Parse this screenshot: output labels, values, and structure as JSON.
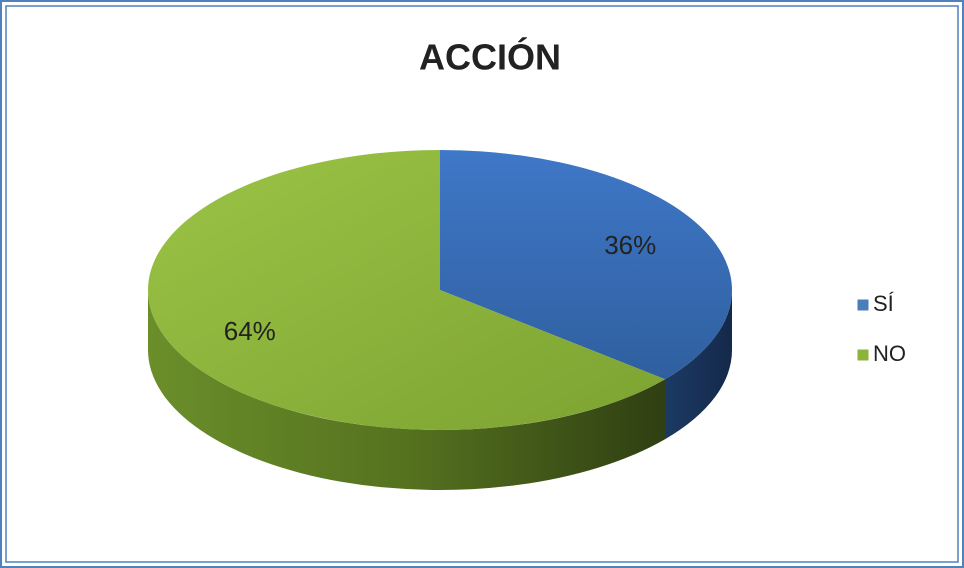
{
  "chart_data": {
    "type": "pie",
    "title": "ACCIÓN",
    "categories": [
      "SÍ",
      "NO"
    ],
    "values": [
      36,
      64
    ],
    "value_labels": [
      "36%",
      "64%"
    ],
    "colors": [
      "#4a7ebb",
      "#8cb33b"
    ],
    "legend": "right"
  }
}
